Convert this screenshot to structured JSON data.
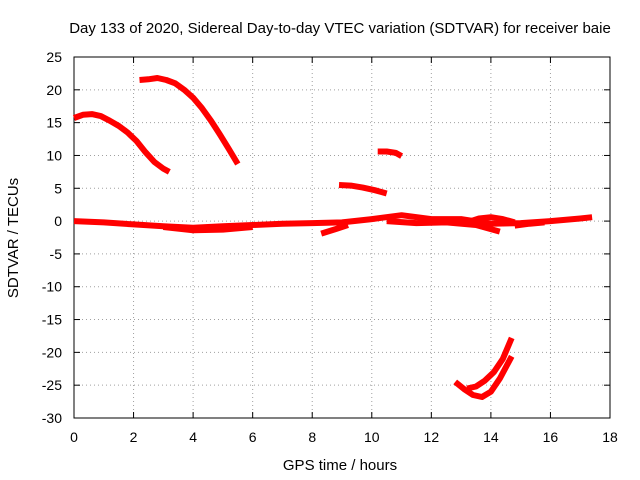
{
  "chart_data": {
    "type": "scatter",
    "title": "Day 133 of 2020, Sidereal Day-to-day VTEC variation (SDTVAR) for receiver baie",
    "xlabel": "GPS time / hours",
    "ylabel": "SDTVAR / TECUs",
    "xlim": [
      0,
      18
    ],
    "ylim": [
      -30,
      25
    ],
    "xticks": [
      0,
      2,
      4,
      6,
      8,
      10,
      12,
      14,
      16,
      18
    ],
    "yticks": [
      -30,
      -25,
      -20,
      -15,
      -10,
      -5,
      0,
      5,
      10,
      15,
      20,
      25
    ],
    "grid": true,
    "legend": "none",
    "series_color": "#ff0000",
    "series": [
      {
        "name": "arc-1",
        "x": [
          0.0,
          0.3,
          0.6,
          0.9,
          1.2,
          1.5,
          1.8,
          2.1,
          2.4,
          2.7,
          3.0,
          3.2
        ],
        "y": [
          15.7,
          16.2,
          16.3,
          16.0,
          15.3,
          14.5,
          13.5,
          12.2,
          10.5,
          9.0,
          8.0,
          7.5
        ]
      },
      {
        "name": "arc-2",
        "x": [
          2.2,
          2.5,
          2.8,
          3.1,
          3.4,
          3.7,
          4.0,
          4.3,
          4.6,
          4.9,
          5.2,
          5.5
        ],
        "y": [
          21.5,
          21.6,
          21.8,
          21.5,
          21.0,
          20.0,
          18.8,
          17.2,
          15.3,
          13.2,
          11.0,
          8.7
        ]
      },
      {
        "name": "arc-3",
        "x": [
          8.9,
          9.3,
          9.7,
          10.1,
          10.5
        ],
        "y": [
          5.5,
          5.4,
          5.1,
          4.7,
          4.2
        ]
      },
      {
        "name": "arc-4",
        "x": [
          10.2,
          10.5,
          10.8,
          11.0
        ],
        "y": [
          10.6,
          10.6,
          10.4,
          9.9
        ]
      },
      {
        "name": "arc-5",
        "x": [
          0.0,
          1.0,
          2.0,
          3.0,
          4.0,
          5.0,
          6.0,
          7.0,
          8.0,
          9.0,
          10.0,
          11.0,
          12.0,
          13.0,
          14.0,
          15.0,
          16.0,
          17.0,
          17.4
        ],
        "y": [
          0.0,
          -0.2,
          -0.5,
          -0.8,
          -1.0,
          -0.8,
          -0.6,
          -0.4,
          -0.3,
          -0.2,
          0.3,
          0.9,
          0.3,
          0.3,
          -0.4,
          -0.3,
          0.0,
          0.4,
          0.6
        ]
      },
      {
        "name": "arc-6",
        "x": [
          3.0,
          4.0,
          5.0,
          6.0
        ],
        "y": [
          -0.9,
          -1.4,
          -1.3,
          -0.9
        ]
      },
      {
        "name": "arc-7",
        "x": [
          8.3,
          8.8,
          9.2
        ],
        "y": [
          -1.9,
          -1.2,
          -0.6
        ]
      },
      {
        "name": "arc-8",
        "x": [
          10.5,
          11.5,
          12.5,
          13.5,
          14.3
        ],
        "y": [
          0.0,
          -0.3,
          -0.2,
          -0.6,
          -1.6
        ]
      },
      {
        "name": "arc-9",
        "x": [
          13.2,
          13.6,
          14.0,
          14.4,
          14.8
        ],
        "y": [
          -0.2,
          0.4,
          0.6,
          0.3,
          -0.2
        ]
      },
      {
        "name": "arc-10",
        "x": [
          14.8,
          15.3,
          15.8
        ],
        "y": [
          -0.7,
          -0.4,
          -0.2
        ]
      },
      {
        "name": "arc-11",
        "x": [
          12.8,
          13.1,
          13.4,
          13.7,
          14.0,
          14.3,
          14.7
        ],
        "y": [
          -24.5,
          -25.6,
          -26.5,
          -26.8,
          -26.0,
          -24.0,
          -20.6
        ]
      },
      {
        "name": "arc-12",
        "x": [
          13.2,
          13.5,
          13.8,
          14.1,
          14.4,
          14.7
        ],
        "y": [
          -25.5,
          -25.2,
          -24.3,
          -23.0,
          -21.0,
          -17.8
        ]
      }
    ]
  }
}
